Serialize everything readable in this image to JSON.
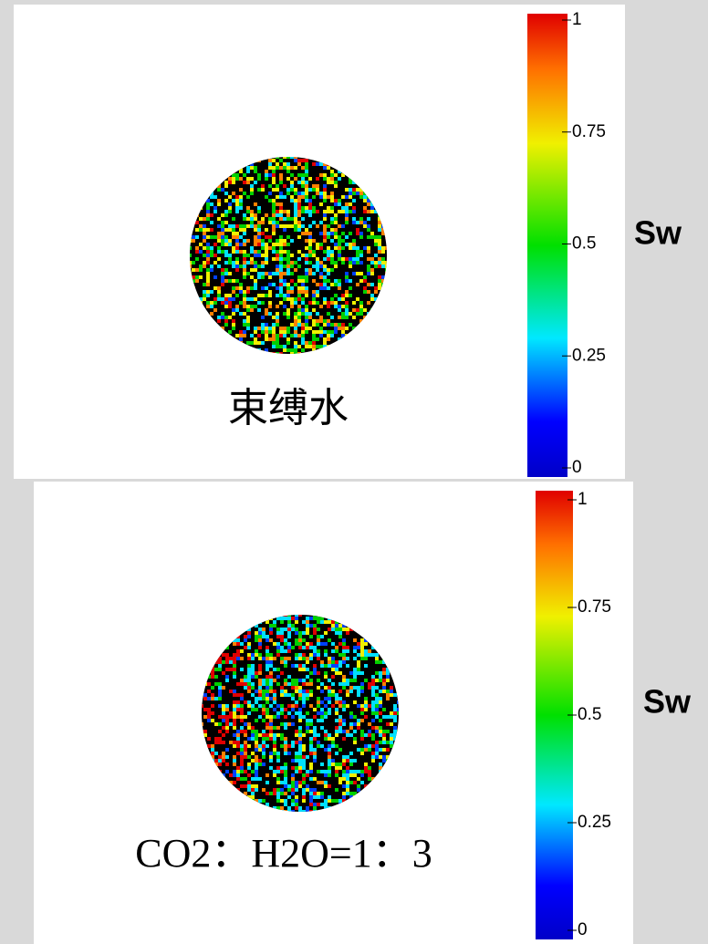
{
  "panels": [
    {
      "caption": "束缚水",
      "colorbar": {
        "label": "Sw",
        "lim": [
          0,
          1
        ],
        "ticks": [
          0,
          0.25,
          0.5,
          0.75,
          1
        ]
      }
    },
    {
      "caption": "CO2：H2O=1：3",
      "colorbar": {
        "label": "Sw",
        "lim": [
          0,
          1
        ],
        "ticks": [
          0,
          0.25,
          0.5,
          0.75,
          1
        ]
      }
    }
  ]
}
